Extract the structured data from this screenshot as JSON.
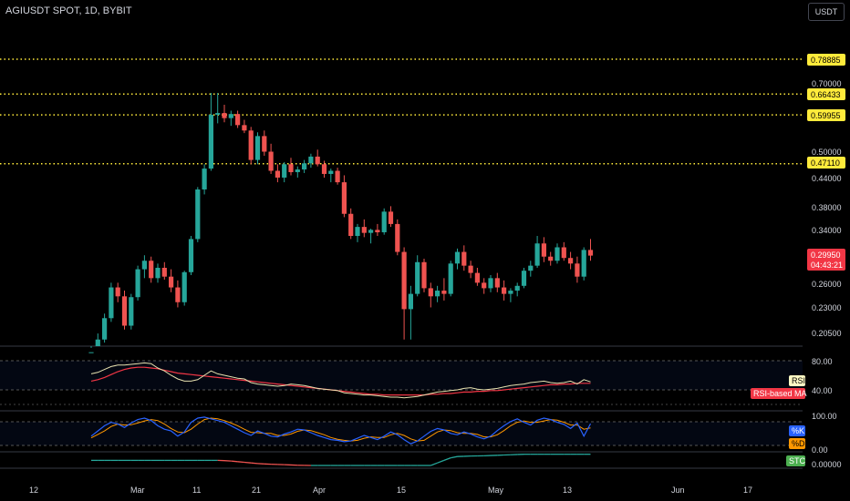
{
  "header": {
    "title": "AGIUSDT SPOT, 1D, BYBIT",
    "currency_button": "USDT"
  },
  "colors": {
    "up": "#26a69a",
    "down": "#ef5350",
    "level_line": "#ffeb3b",
    "rsi_line": "#e8e2b0",
    "rsi_ma": "#f23645",
    "stoch_k": "#2962ff",
    "stoch_d": "#ff9800",
    "stc": "#26a69a"
  },
  "price_axis": {
    "ticks": [
      "0.70000",
      "0.50000",
      "0.44000",
      "0.38000",
      "0.34000",
      "0.26000",
      "0.23000",
      "0.20500"
    ],
    "levels": [
      "0.78885",
      "0.66433",
      "0.59955",
      "0.47110"
    ],
    "current_price": "0.29950",
    "countdown": "04:43:21"
  },
  "date_axis": {
    "labels": [
      "12",
      "Mar",
      "11",
      "21",
      "Apr",
      "15",
      "May",
      "13",
      "Jun",
      "17"
    ]
  },
  "rsi_panel": {
    "ticks": [
      "80.00",
      "40.00"
    ],
    "legend_rsi": "RSI",
    "legend_ma": "RSI-based MA"
  },
  "stoch_panel": {
    "ticks": [
      "100.00",
      "0.00"
    ],
    "legend_k": "%K",
    "legend_d": "%D"
  },
  "stc_panel": {
    "ticks": [
      "0.00000"
    ],
    "legend": "STC"
  },
  "chart_data": {
    "type": "candlestick",
    "symbol": "AGIUSDT",
    "interval": "1D",
    "candles": [
      [
        0.176,
        0.19,
        0.172,
        0.186
      ],
      [
        0.186,
        0.204,
        0.182,
        0.198
      ],
      [
        0.198,
        0.225,
        0.195,
        0.22
      ],
      [
        0.22,
        0.262,
        0.216,
        0.256
      ],
      [
        0.256,
        0.262,
        0.238,
        0.245
      ],
      [
        0.245,
        0.252,
        0.208,
        0.212
      ],
      [
        0.212,
        0.248,
        0.208,
        0.244
      ],
      [
        0.244,
        0.285,
        0.24,
        0.28
      ],
      [
        0.28,
        0.3,
        0.268,
        0.292
      ],
      [
        0.292,
        0.298,
        0.262,
        0.268
      ],
      [
        0.268,
        0.288,
        0.262,
        0.282
      ],
      [
        0.282,
        0.29,
        0.266,
        0.27
      ],
      [
        0.27,
        0.28,
        0.25,
        0.256
      ],
      [
        0.256,
        0.265,
        0.232,
        0.238
      ],
      [
        0.238,
        0.278,
        0.234,
        0.276
      ],
      [
        0.276,
        0.33,
        0.272,
        0.325
      ],
      [
        0.325,
        0.42,
        0.32,
        0.415
      ],
      [
        0.415,
        0.47,
        0.405,
        0.46
      ],
      [
        0.46,
        0.668,
        0.455,
        0.6
      ],
      [
        0.6,
        0.668,
        0.575,
        0.605
      ],
      [
        0.605,
        0.63,
        0.578,
        0.59
      ],
      [
        0.59,
        0.612,
        0.568,
        0.602
      ],
      [
        0.602,
        0.612,
        0.562,
        0.57
      ],
      [
        0.57,
        0.585,
        0.548,
        0.555
      ],
      [
        0.555,
        0.565,
        0.47,
        0.48
      ],
      [
        0.48,
        0.55,
        0.47,
        0.54
      ],
      [
        0.54,
        0.555,
        0.49,
        0.5
      ],
      [
        0.5,
        0.52,
        0.448,
        0.455
      ],
      [
        0.455,
        0.47,
        0.43,
        0.44
      ],
      [
        0.44,
        0.475,
        0.43,
        0.47
      ],
      [
        0.47,
        0.485,
        0.445,
        0.452
      ],
      [
        0.452,
        0.465,
        0.44,
        0.458
      ],
      [
        0.458,
        0.48,
        0.45,
        0.472
      ],
      [
        0.472,
        0.495,
        0.462,
        0.488
      ],
      [
        0.488,
        0.505,
        0.465,
        0.47
      ],
      [
        0.47,
        0.478,
        0.44,
        0.448
      ],
      [
        0.448,
        0.46,
        0.43,
        0.455
      ],
      [
        0.455,
        0.462,
        0.425,
        0.43
      ],
      [
        0.43,
        0.445,
        0.362,
        0.368
      ],
      [
        0.368,
        0.378,
        0.325,
        0.33
      ],
      [
        0.33,
        0.35,
        0.32,
        0.345
      ],
      [
        0.345,
        0.358,
        0.328,
        0.335
      ],
      [
        0.335,
        0.342,
        0.318,
        0.34
      ],
      [
        0.34,
        0.35,
        0.33,
        0.336
      ],
      [
        0.336,
        0.378,
        0.332,
        0.372
      ],
      [
        0.372,
        0.382,
        0.345,
        0.35
      ],
      [
        0.35,
        0.358,
        0.3,
        0.305
      ],
      [
        0.305,
        0.312,
        0.198,
        0.23
      ],
      [
        0.23,
        0.258,
        0.198,
        0.248
      ],
      [
        0.248,
        0.3,
        0.245,
        0.29
      ],
      [
        0.29,
        0.295,
        0.25,
        0.255
      ],
      [
        0.255,
        0.262,
        0.232,
        0.245
      ],
      [
        0.245,
        0.258,
        0.238,
        0.252
      ],
      [
        0.252,
        0.268,
        0.24,
        0.248
      ],
      [
        0.248,
        0.292,
        0.245,
        0.288
      ],
      [
        0.288,
        0.31,
        0.28,
        0.305
      ],
      [
        0.305,
        0.315,
        0.278,
        0.285
      ],
      [
        0.285,
        0.292,
        0.268,
        0.275
      ],
      [
        0.275,
        0.282,
        0.258,
        0.262
      ],
      [
        0.262,
        0.268,
        0.248,
        0.255
      ],
      [
        0.255,
        0.272,
        0.25,
        0.268
      ],
      [
        0.268,
        0.275,
        0.25,
        0.256
      ],
      [
        0.256,
        0.265,
        0.24,
        0.248
      ],
      [
        0.248,
        0.255,
        0.238,
        0.252
      ],
      [
        0.252,
        0.262,
        0.245,
        0.258
      ],
      [
        0.258,
        0.282,
        0.255,
        0.278
      ],
      [
        0.278,
        0.292,
        0.27,
        0.285
      ],
      [
        0.285,
        0.33,
        0.282,
        0.318
      ],
      [
        0.318,
        0.328,
        0.29,
        0.298
      ],
      [
        0.298,
        0.305,
        0.285,
        0.292
      ],
      [
        0.292,
        0.318,
        0.288,
        0.312
      ],
      [
        0.312,
        0.32,
        0.292,
        0.296
      ],
      [
        0.296,
        0.305,
        0.28,
        0.288
      ],
      [
        0.288,
        0.298,
        0.262,
        0.27
      ],
      [
        0.27,
        0.312,
        0.265,
        0.308
      ],
      [
        0.308,
        0.325,
        0.292,
        0.2995
      ]
    ],
    "ylim": [
      0.19,
      0.86
    ],
    "y_scale": "log",
    "level_lines": [
      0.78885,
      0.66433,
      0.59955,
      0.4711
    ],
    "rsi": [
      62,
      64,
      68,
      72,
      74,
      74,
      75,
      76,
      77,
      76,
      70,
      66,
      60,
      55,
      52,
      52,
      54,
      60,
      66,
      62,
      60,
      58,
      56,
      55,
      50,
      48,
      47,
      46,
      45,
      46,
      48,
      47,
      46,
      44,
      42,
      41,
      40,
      39,
      36,
      35,
      34,
      33,
      33,
      32,
      31,
      30,
      30,
      29,
      30,
      31,
      33,
      35,
      37,
      38,
      39,
      40,
      42,
      43,
      41,
      40,
      41,
      42,
      44,
      46,
      47,
      48,
      50,
      51,
      52,
      50,
      49,
      50,
      52,
      48,
      54,
      51
    ],
    "rsi_ma": [
      52,
      54,
      57,
      61,
      65,
      68,
      70,
      71,
      71,
      70,
      69,
      67,
      65,
      63,
      62,
      61,
      60,
      59,
      58,
      57,
      56,
      55,
      54,
      53,
      52,
      51,
      50,
      49,
      48,
      47,
      46,
      45,
      44,
      43,
      42,
      41,
      40,
      39,
      38,
      37,
      36,
      35,
      34,
      34,
      33,
      33,
      33,
      33,
      33,
      33,
      33,
      34,
      34,
      35,
      35,
      36,
      37,
      37,
      38,
      38,
      39,
      39,
      40,
      41,
      42,
      43,
      44,
      45,
      46,
      47,
      47,
      48,
      48,
      49,
      49,
      49
    ],
    "stoch_k": [
      40,
      55,
      70,
      80,
      75,
      65,
      78,
      88,
      92,
      85,
      70,
      60,
      55,
      40,
      52,
      80,
      92,
      95,
      90,
      85,
      80,
      70,
      60,
      50,
      42,
      55,
      48,
      40,
      38,
      46,
      52,
      60,
      58,
      50,
      42,
      36,
      30,
      28,
      24,
      26,
      34,
      42,
      36,
      30,
      40,
      52,
      44,
      30,
      18,
      26,
      40,
      54,
      62,
      58,
      48,
      44,
      52,
      46,
      38,
      32,
      40,
      56,
      70,
      82,
      90,
      80,
      72,
      86,
      92,
      88,
      80,
      74,
      62,
      78,
      40,
      76
    ],
    "stoch_d": [
      35,
      45,
      55,
      68,
      75,
      72,
      73,
      78,
      84,
      88,
      85,
      75,
      62,
      52,
      50,
      60,
      75,
      88,
      92,
      90,
      85,
      78,
      70,
      60,
      51,
      50,
      48,
      48,
      42,
      42,
      46,
      54,
      58,
      56,
      50,
      44,
      36,
      31,
      28,
      26,
      28,
      34,
      38,
      36,
      36,
      44,
      48,
      42,
      32,
      26,
      28,
      40,
      52,
      58,
      56,
      50,
      48,
      48,
      45,
      38,
      38,
      44,
      56,
      70,
      80,
      84,
      80,
      80,
      84,
      88,
      86,
      80,
      72,
      72,
      60,
      64
    ],
    "stc": [
      40,
      40,
      40,
      40,
      40,
      40,
      40,
      40,
      40,
      40,
      40,
      40,
      40,
      40,
      40,
      40,
      40,
      40,
      40,
      40,
      38,
      35,
      30,
      25,
      20,
      15,
      12,
      10,
      8,
      6,
      4,
      2,
      1,
      0,
      0,
      0,
      0,
      0,
      0,
      0,
      0,
      0,
      0,
      0,
      0,
      0,
      0,
      0,
      0,
      0,
      0,
      0,
      20,
      40,
      60,
      70,
      72,
      74,
      75,
      76,
      78,
      80,
      82,
      84,
      86,
      88,
      88,
      88,
      88,
      88,
      88,
      88,
      88,
      88,
      88,
      88
    ]
  }
}
